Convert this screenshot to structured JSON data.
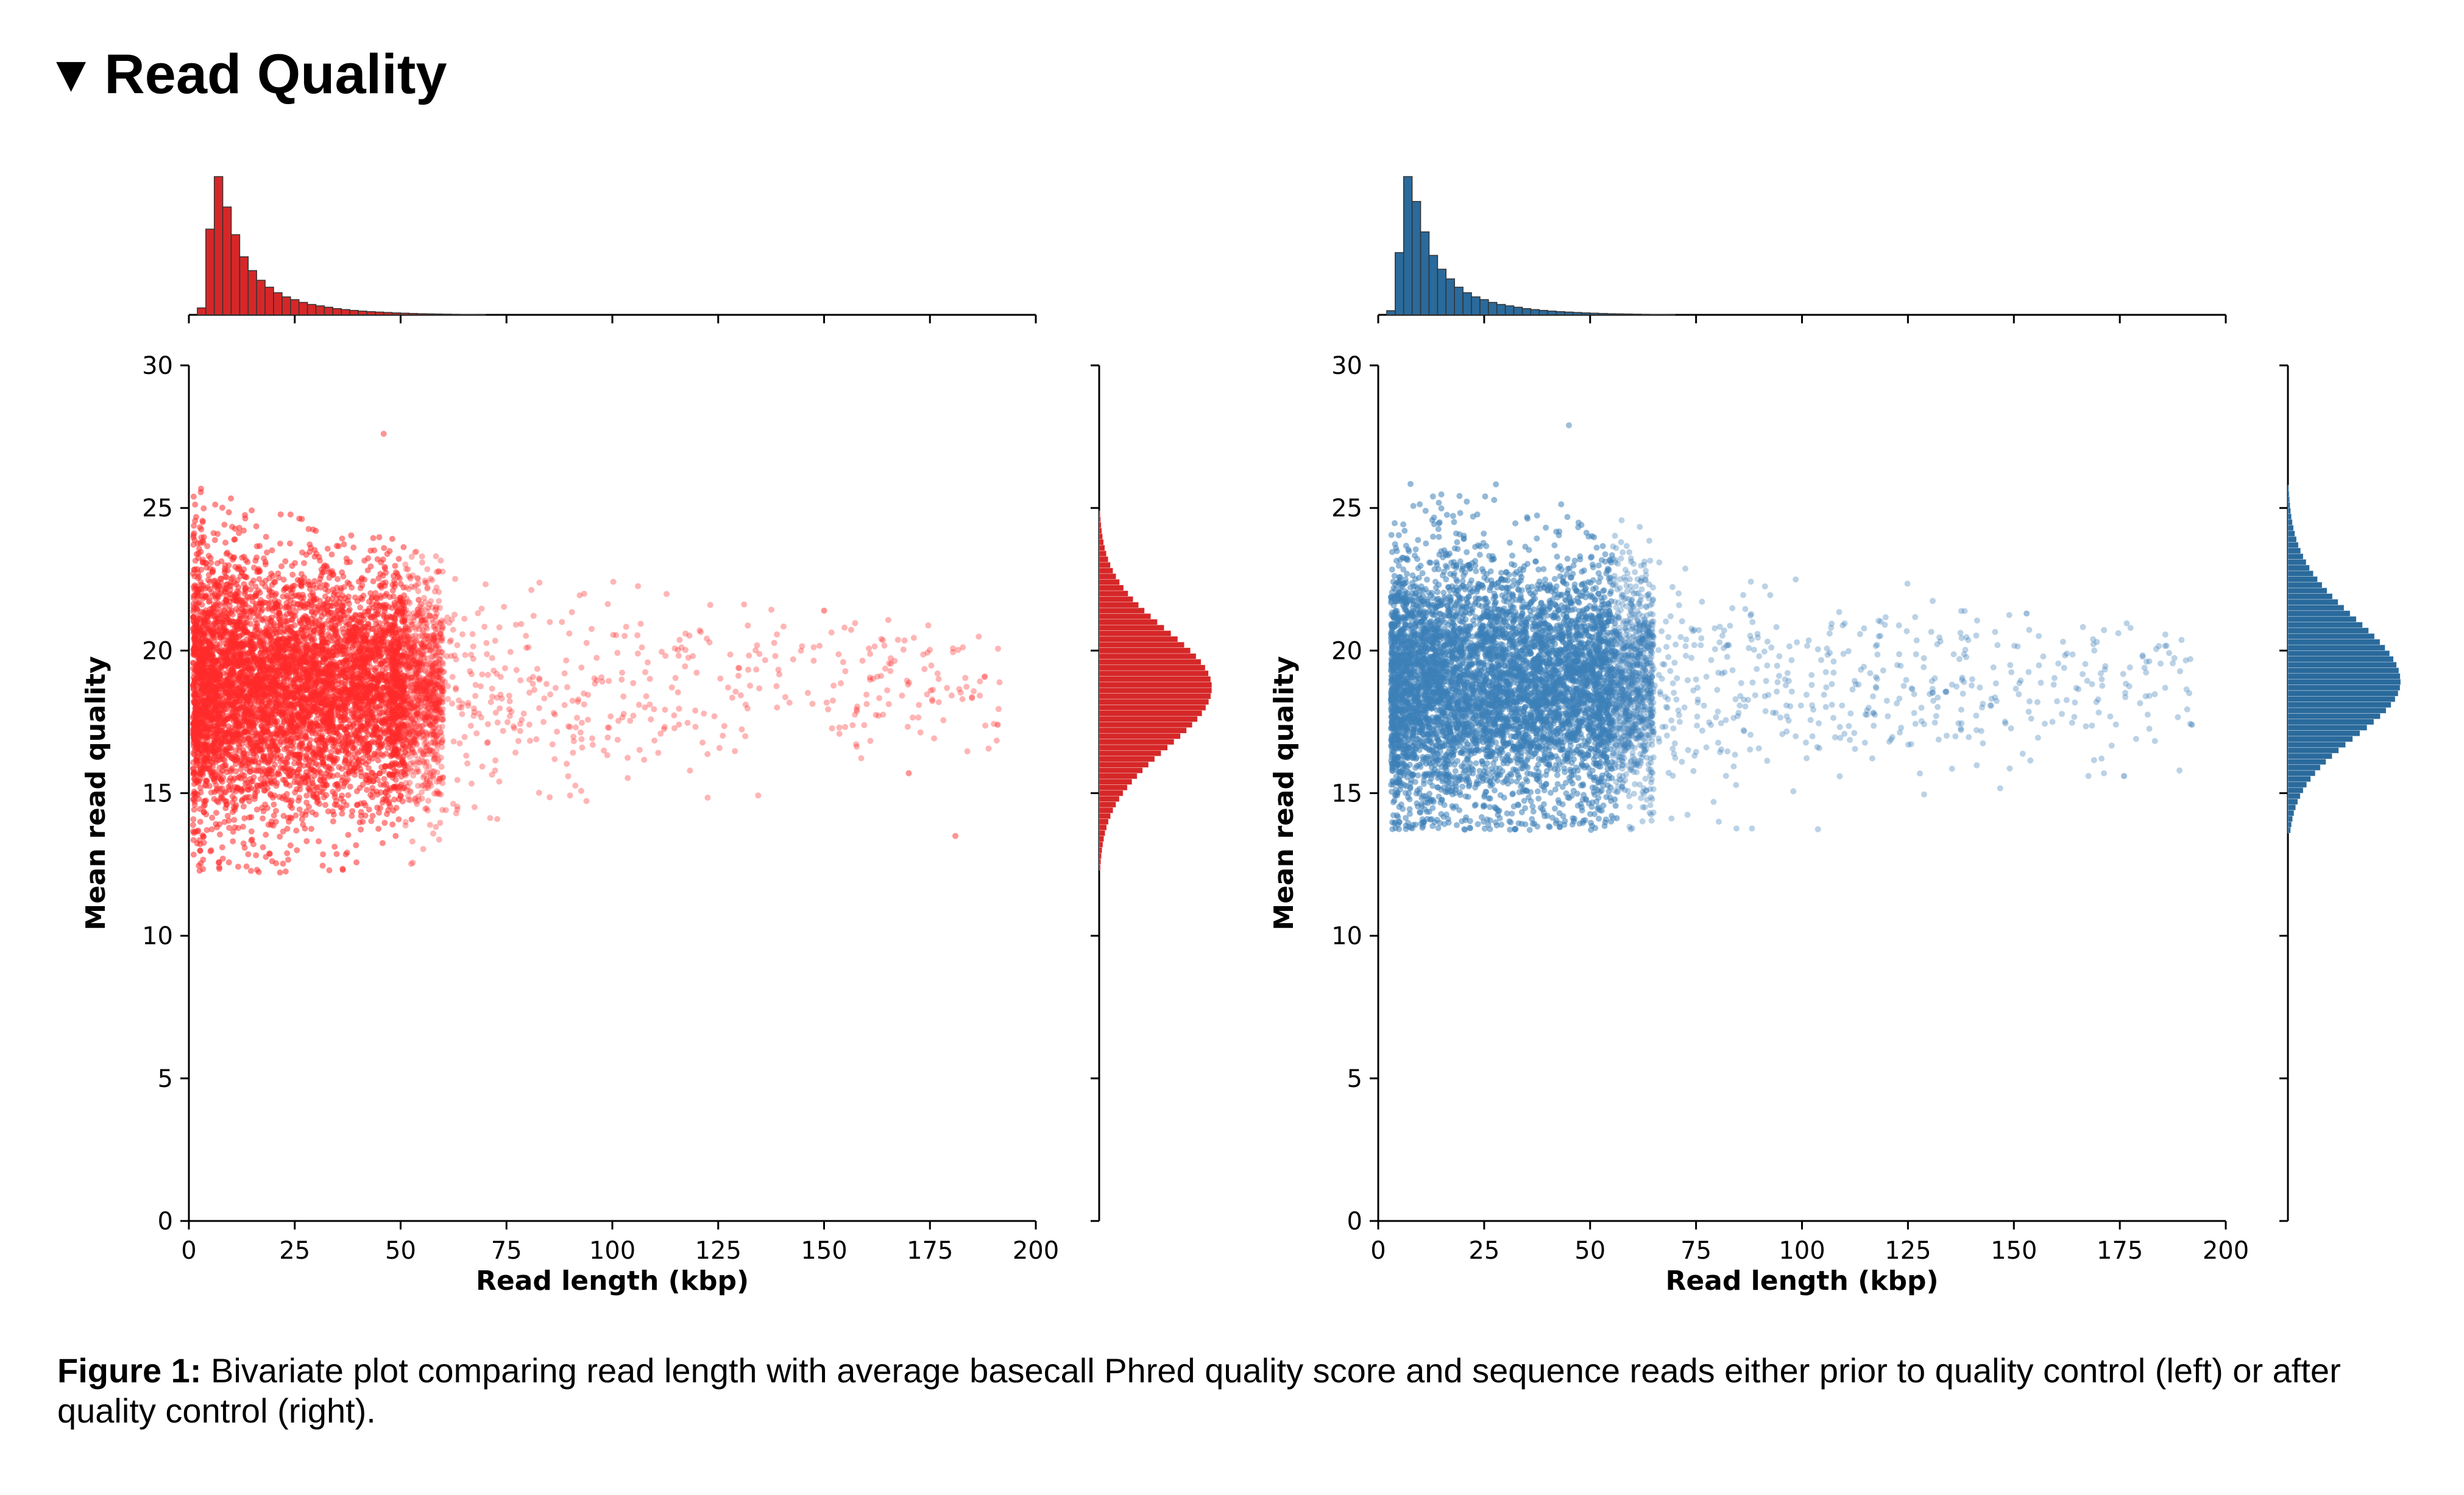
{
  "section": {
    "toggle_icon": "triangle-down-icon",
    "title": "Read Quality"
  },
  "caption": {
    "label": "Figure 1:",
    "text": "Bivariate plot comparing read length with average basecall Phred quality score and sequence reads either prior to quality control (left) or after quality control (right)."
  },
  "chart_data": [
    {
      "type": "scatter",
      "panel": "left",
      "xlabel": "Read length (kbp)",
      "ylabel": "Mean read quality",
      "xlim": [
        0,
        200
      ],
      "ylim": [
        0,
        30
      ],
      "xticks": [
        0,
        25,
        50,
        75,
        100,
        125,
        150,
        175,
        200
      ],
      "yticks": [
        0,
        5,
        10,
        15,
        20,
        25,
        30
      ],
      "color": "#ff2a2a",
      "hist_color": "#d62728",
      "point_cloud": {
        "x_min": 1,
        "x_dense_max": 60,
        "x_max": 192,
        "y_floor": 12.2,
        "y_top_at_short": 26.5,
        "y_center": 18.7
      },
      "outliers": [
        [
          170,
          15.7
        ],
        [
          181,
          13.5
        ],
        [
          191,
          17.4
        ],
        [
          150,
          21.4
        ],
        [
          46,
          27.6
        ]
      ],
      "marginal_x_hist": {
        "bin_width_kbp": 2,
        "values": [
          0.05,
          0.62,
          1.0,
          0.78,
          0.58,
          0.42,
          0.32,
          0.25,
          0.2,
          0.16,
          0.13,
          0.11,
          0.09,
          0.075,
          0.065,
          0.055,
          0.045,
          0.038,
          0.032,
          0.027,
          0.023,
          0.02,
          0.017,
          0.014,
          0.012,
          0.01,
          0.008,
          0.007,
          0.006,
          0.005,
          0.004,
          0.003,
          0.003,
          0.002
        ]
      },
      "marginal_y_hist": {
        "y_range": [
          12.3,
          24.8
        ],
        "peak": 18.7,
        "sigma_low": 2.1,
        "sigma_high": 2.0
      }
    },
    {
      "type": "scatter",
      "panel": "right",
      "xlabel": "Read length (kbp)",
      "ylabel": "Mean read quality",
      "xlim": [
        0,
        200
      ],
      "ylim": [
        0,
        30
      ],
      "xticks": [
        0,
        25,
        50,
        75,
        100,
        125,
        150,
        175,
        200
      ],
      "yticks": [
        0,
        5,
        10,
        15,
        20,
        25,
        30
      ],
      "color": "#3d7fb8",
      "hist_color": "#2a6a9c",
      "point_cloud": {
        "x_min": 3,
        "x_dense_max": 65,
        "x_max": 192,
        "y_floor": 13.7,
        "y_top_at_short": 28.0,
        "y_center": 18.8
      },
      "outliers": [
        [
          176,
          15.6
        ],
        [
          192,
          17.4
        ],
        [
          153,
          21.3
        ],
        [
          45,
          27.9
        ]
      ],
      "marginal_x_hist": {
        "bin_width_kbp": 2,
        "values": [
          0.03,
          0.45,
          1.0,
          0.82,
          0.6,
          0.43,
          0.33,
          0.26,
          0.2,
          0.16,
          0.13,
          0.11,
          0.09,
          0.075,
          0.065,
          0.055,
          0.045,
          0.038,
          0.032,
          0.027,
          0.023,
          0.02,
          0.017,
          0.014,
          0.012,
          0.01,
          0.008,
          0.007,
          0.006,
          0.005,
          0.004,
          0.003,
          0.003,
          0.002
        ]
      },
      "marginal_y_hist": {
        "y_range": [
          13.6,
          25.6
        ],
        "peak": 18.9,
        "sigma_low": 1.9,
        "sigma_high": 2.2
      }
    }
  ]
}
